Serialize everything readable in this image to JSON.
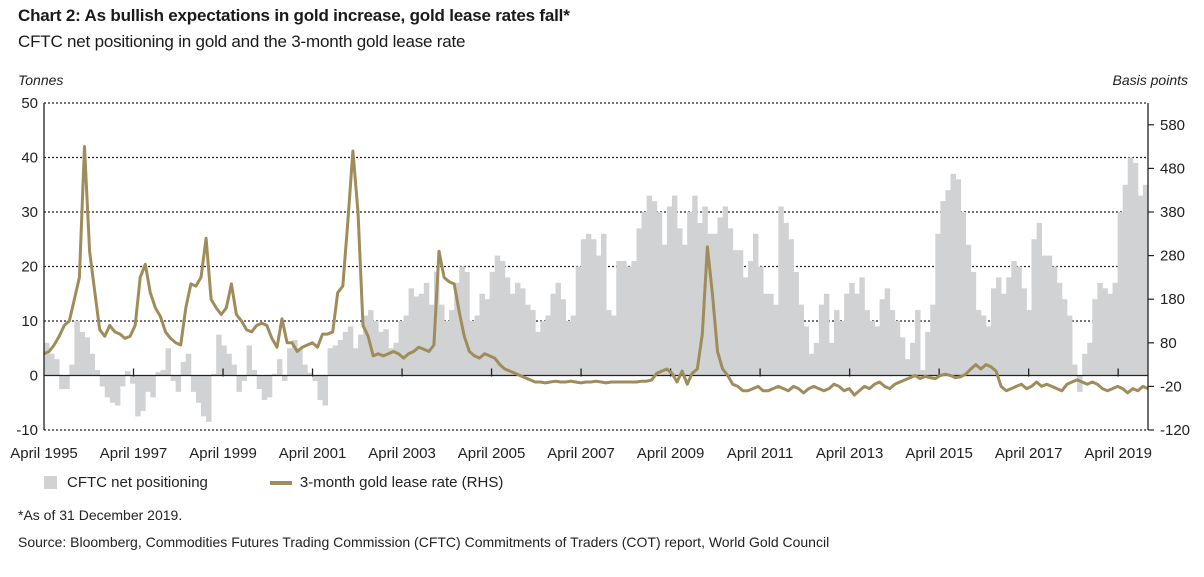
{
  "chart_data": {
    "type": "bar+line",
    "title": "Chart 2: As bullish expectations in gold increase, gold lease rates fall*",
    "subtitle": "CFTC net positioning in gold and the 3-month gold lease rate",
    "ylabel_left": "Tonnes",
    "ylabel_right": "Basis points",
    "xlabel": "",
    "ylim_left": [
      -10,
      50
    ],
    "ylim_right": [
      -120,
      630
    ],
    "yticks_left": [
      50,
      40,
      30,
      20,
      10,
      0,
      -10
    ],
    "yticks_right": [
      580,
      480,
      380,
      280,
      180,
      80,
      -20,
      -120
    ],
    "xticks": [
      "April 1995",
      "April 1997",
      "April 1999",
      "April 2001",
      "April 2003",
      "April 2005",
      "April 2007",
      "April 2009",
      "April 2011",
      "April 2013",
      "April 2015",
      "April 2017",
      "April 2019"
    ],
    "x_range": [
      "April 1995",
      "December 2019"
    ],
    "grid": "horizontal dotted",
    "legend_position": "bottom-left",
    "series": [
      {
        "name": "CFTC net positioning",
        "type": "bar",
        "axis": "left",
        "unit": "tonnes",
        "color": "#d1d2d4",
        "sampling": "every 2 months from April 1995",
        "values": [
          6,
          4,
          3,
          -2.5,
          -2.5,
          2,
          10,
          8,
          7,
          4,
          1,
          -2,
          -4,
          -5,
          -5.5,
          -2,
          0.8,
          -1.5,
          -7.5,
          -6.5,
          -3,
          -4,
          0.6,
          1,
          5,
          -1,
          -3,
          2.5,
          4,
          -3,
          -5,
          -7.5,
          -8.5,
          0.3,
          7.5,
          5.5,
          4,
          2,
          -3,
          -1,
          5.5,
          1,
          -2.5,
          -4.5,
          -4,
          0.3,
          3,
          -1,
          5,
          6.5,
          5,
          2,
          0.5,
          -1,
          -4.5,
          -5.5,
          5,
          5.5,
          6.5,
          8,
          9,
          5,
          7.5,
          11,
          12,
          10,
          8,
          8.5,
          5,
          6,
          10,
          11,
          16,
          14.5,
          15,
          17,
          13,
          19,
          13,
          10,
          12,
          17,
          20,
          19,
          10,
          11,
          15,
          14,
          19,
          22,
          21,
          18,
          15,
          17,
          16,
          13,
          12,
          8,
          10,
          11,
          15,
          17,
          14,
          10,
          11,
          20,
          25,
          26,
          25,
          22,
          26,
          12,
          11,
          21,
          21,
          20,
          21,
          27,
          30,
          33,
          32,
          30,
          24,
          31,
          33,
          27,
          24,
          30,
          33,
          28,
          31,
          26,
          26,
          29,
          31,
          27,
          23,
          23,
          18,
          21,
          26,
          20,
          15,
          15,
          13,
          31,
          28,
          25,
          19,
          13,
          9,
          4,
          6,
          13,
          15,
          6,
          12,
          10,
          15,
          17,
          15,
          18,
          12,
          10,
          9,
          14,
          16,
          12,
          10,
          7,
          3,
          6,
          12,
          1,
          8,
          13,
          26,
          32,
          34,
          37,
          36,
          30,
          24,
          19,
          12,
          11,
          9,
          16,
          18,
          15,
          18,
          21,
          20,
          16,
          12,
          25,
          28,
          22,
          22,
          20,
          17,
          14,
          11,
          2,
          -3,
          4,
          6,
          14,
          17,
          16,
          15,
          17,
          30,
          35,
          40,
          39,
          33,
          35
        ]
      },
      {
        "name": "3-month gold lease rate (RHS)",
        "type": "line",
        "axis": "right",
        "unit": "basis points",
        "color": "#a08c5b",
        "sampling": "every 2 months from April 1995",
        "values": [
          55,
          60,
          75,
          95,
          120,
          130,
          180,
          230,
          530,
          290,
          200,
          110,
          95,
          120,
          105,
          100,
          90,
          95,
          120,
          230,
          260,
          195,
          160,
          140,
          105,
          90,
          80,
          75,
          160,
          215,
          210,
          230,
          320,
          180,
          160,
          145,
          160,
          215,
          145,
          130,
          110,
          105,
          120,
          125,
          120,
          90,
          70,
          135,
          80,
          80,
          60,
          70,
          75,
          80,
          70,
          100,
          100,
          105,
          195,
          210,
          360,
          520,
          380,
          120,
          95,
          50,
          55,
          50,
          55,
          60,
          55,
          45,
          55,
          60,
          70,
          65,
          60,
          75,
          290,
          230,
          220,
          215,
          150,
          95,
          60,
          50,
          45,
          55,
          50,
          45,
          30,
          20,
          15,
          10,
          5,
          0,
          -5,
          -10,
          -10,
          -12,
          -10,
          -8,
          -10,
          -10,
          -8,
          -10,
          -12,
          -10,
          -10,
          -8,
          -10,
          -12,
          -10,
          -10,
          -10,
          -10,
          -10,
          -10,
          -8,
          -8,
          -5,
          10,
          15,
          20,
          10,
          -10,
          15,
          -15,
          10,
          20,
          100,
          300,
          190,
          60,
          20,
          5,
          -15,
          -20,
          -30,
          -30,
          -25,
          -20,
          -30,
          -30,
          -25,
          -20,
          -25,
          -30,
          -20,
          -25,
          -35,
          -25,
          -20,
          -25,
          -30,
          -25,
          -15,
          -20,
          -30,
          -25,
          -40,
          -30,
          -20,
          -25,
          -15,
          -10,
          -20,
          -25,
          -15,
          -10,
          -5,
          0,
          5,
          -2,
          3,
          0,
          -2,
          5,
          8,
          5,
          0,
          2,
          8,
          20,
          30,
          20,
          30,
          25,
          15,
          -20,
          -30,
          -25,
          -20,
          -15,
          -25,
          -20,
          -10,
          -20,
          -15,
          -20,
          -25,
          -30,
          -15,
          -10,
          -5,
          -10,
          -15,
          -10,
          -15,
          -25,
          -30,
          -25,
          -20,
          -25,
          -35,
          -25,
          -30,
          -20,
          -25
        ]
      }
    ]
  },
  "footnote": "*As of 31 December 2019.",
  "source": "Source: Bloomberg, Commodities Futures Trading Commission (CFTC) Commitments of Traders (COT) report, World Gold Council"
}
